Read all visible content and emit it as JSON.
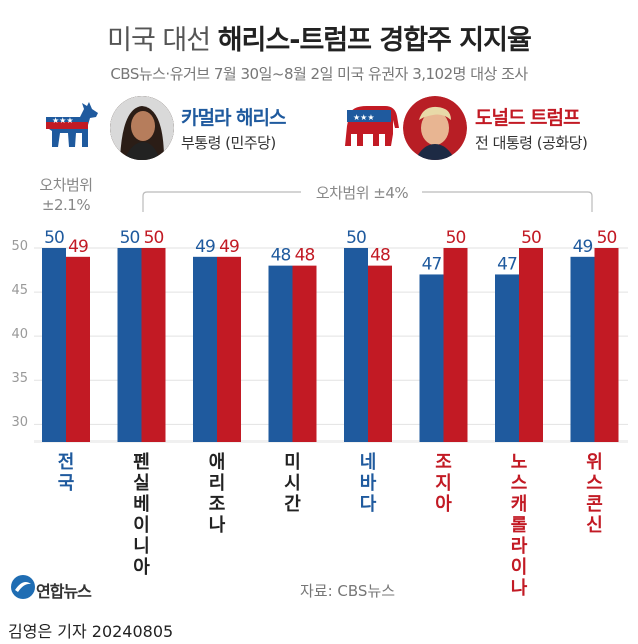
{
  "title": {
    "light": "미국 대선",
    "bold": "해리스-트럼프 경합주 지지율"
  },
  "subtitle": "CBS뉴스·유거브 7월 30일~8월 2일 미국 유권자 3,102명 대상 조사",
  "candidates": {
    "harris": {
      "name": "카멀라 해리스",
      "role": "부통령 (민주당)"
    },
    "trump": {
      "name": "도널드 트럼프",
      "role": "전 대통령 (공화당)"
    }
  },
  "margin_national": {
    "line1": "오차범위",
    "line2": "±2.1%"
  },
  "margin_states": "오차범위 ±4%",
  "colors": {
    "harris": "#1f5a9e",
    "trump": "#c21a24",
    "grid": "#e2e2e2"
  },
  "chart_data": {
    "type": "bar",
    "categories": [
      "전국",
      "펜실베이니아",
      "애리조나",
      "미시간",
      "네바다",
      "조지아",
      "노스캐롤라이나",
      "위스콘신"
    ],
    "category_colors": [
      "#1f5a9e",
      "#222222",
      "#222222",
      "#222222",
      "#1f5a9e",
      "#c21a24",
      "#c21a24",
      "#c21a24"
    ],
    "series": [
      {
        "name": "카멀라 해리스",
        "color": "#1f5a9e",
        "values": [
          50,
          50,
          49,
          48,
          50,
          47,
          47,
          49
        ]
      },
      {
        "name": "도널드 트럼프",
        "color": "#c21a24",
        "values": [
          49,
          50,
          49,
          48,
          48,
          50,
          50,
          50
        ]
      }
    ],
    "yticks": [
      "50",
      "45",
      "40",
      "35",
      "30"
    ],
    "ylim": [
      28,
      52
    ]
  },
  "footer": {
    "logo": "연합뉴스",
    "source": "자료: CBS뉴스",
    "byline": "김영은 기자  20240805"
  }
}
